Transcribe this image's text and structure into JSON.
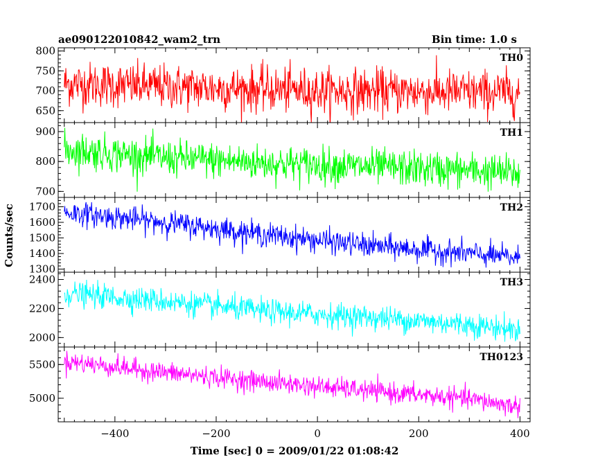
{
  "header": {
    "left_title": "ae090122010842_wam2_trn",
    "right_title": "Bin time: 1.0 s"
  },
  "chart_data": {
    "type": "line",
    "xlabel": "Time [sec] 0 = 2009/01/22 01:08:42",
    "ylabel": "Counts/sec",
    "xlim": [
      -512,
      420
    ],
    "x_ticks": [
      -400,
      -200,
      0,
      200,
      400
    ],
    "x_tick_labels": [
      "−400",
      "−200",
      "0",
      "200",
      "400"
    ],
    "bin_time_s": 1.0,
    "panels": [
      {
        "name": "TH0",
        "color": "#ff0000",
        "ylim": [
          620,
          808
        ],
        "y_ticks": [
          650,
          700,
          750,
          800
        ],
        "trend": [
          [
            -500,
            718
          ],
          [
            -300,
            710
          ],
          [
            0,
            700
          ],
          [
            200,
            698
          ],
          [
            400,
            695
          ]
        ],
        "noise_sd": 28
      },
      {
        "name": "TH1",
        "color": "#00ff00",
        "ylim": [
          680,
          930
        ],
        "y_ticks": [
          700,
          800,
          900
        ],
        "trend": [
          [
            -500,
            840
          ],
          [
            -300,
            812
          ],
          [
            -100,
            795
          ],
          [
            100,
            782
          ],
          [
            300,
            770
          ],
          [
            400,
            760
          ]
        ],
        "noise_sd": 30
      },
      {
        "name": "TH2",
        "color": "#0000ff",
        "ylim": [
          1280,
          1760
        ],
        "y_ticks": [
          1300,
          1400,
          1500,
          1600,
          1700
        ],
        "trend": [
          [
            -500,
            1665
          ],
          [
            -300,
            1600
          ],
          [
            -100,
            1520
          ],
          [
            100,
            1450
          ],
          [
            300,
            1400
          ],
          [
            400,
            1370
          ]
        ],
        "noise_sd": 38
      },
      {
        "name": "TH3",
        "color": "#00ffff",
        "ylim": [
          1935,
          2450
        ],
        "y_ticks": [
          2000,
          2200,
          2400
        ],
        "trend": [
          [
            -500,
            2305
          ],
          [
            -300,
            2250
          ],
          [
            -100,
            2180
          ],
          [
            100,
            2140
          ],
          [
            300,
            2090
          ],
          [
            400,
            2050
          ]
        ],
        "noise_sd": 42
      },
      {
        "name": "TH0123",
        "color": "#ff00ff",
        "ylim": [
          4650,
          5760
        ],
        "y_ticks": [
          5000,
          5500
        ],
        "trend": [
          [
            -500,
            5550
          ],
          [
            -300,
            5380
          ],
          [
            -100,
            5240
          ],
          [
            100,
            5110
          ],
          [
            300,
            4990
          ],
          [
            400,
            4870
          ]
        ],
        "noise_sd": 75
      }
    ]
  }
}
